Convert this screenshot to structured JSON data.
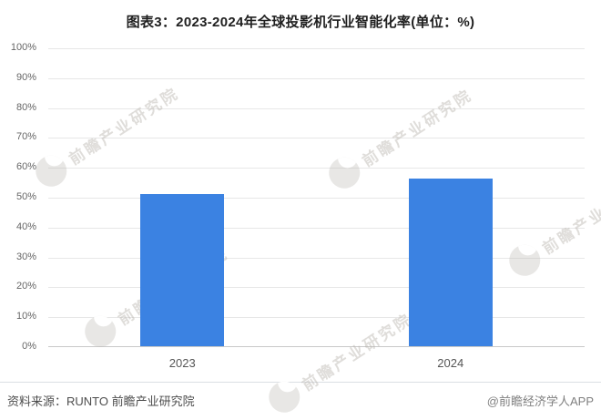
{
  "title": "图表3：2023-2024年全球投影机行业智能化率(单位：%)",
  "chart_data": {
    "type": "bar",
    "title": "图表3：2023-2024年全球投影机行业智能化率(单位：%)",
    "categories": [
      "2023",
      "2024"
    ],
    "values": [
      51,
      56
    ],
    "xlabel": "",
    "ylabel": "",
    "ylim": [
      0,
      100
    ],
    "ytick_step": 10,
    "ytick_labels": [
      "0%",
      "10%",
      "20%",
      "30%",
      "40%",
      "50%",
      "60%",
      "70%",
      "80%",
      "90%",
      "100%"
    ],
    "grid": true,
    "legend": "none",
    "bar_color": "#3b82e2"
  },
  "footer": {
    "source_label": "资料来源：RUNTO 前瞻产业研究院",
    "credit_label": "@前瞻经济学人APP"
  },
  "watermark": {
    "text": "前瞻产业研究院"
  },
  "colors": {
    "bar": "#3b82e2",
    "gridline": "#e7e7e7",
    "axis_line": "#c9c9c9",
    "title_text": "#1f1f1f",
    "tick_text": "#666666",
    "source_text": "#4d4d4d",
    "credit_text": "#808080"
  }
}
